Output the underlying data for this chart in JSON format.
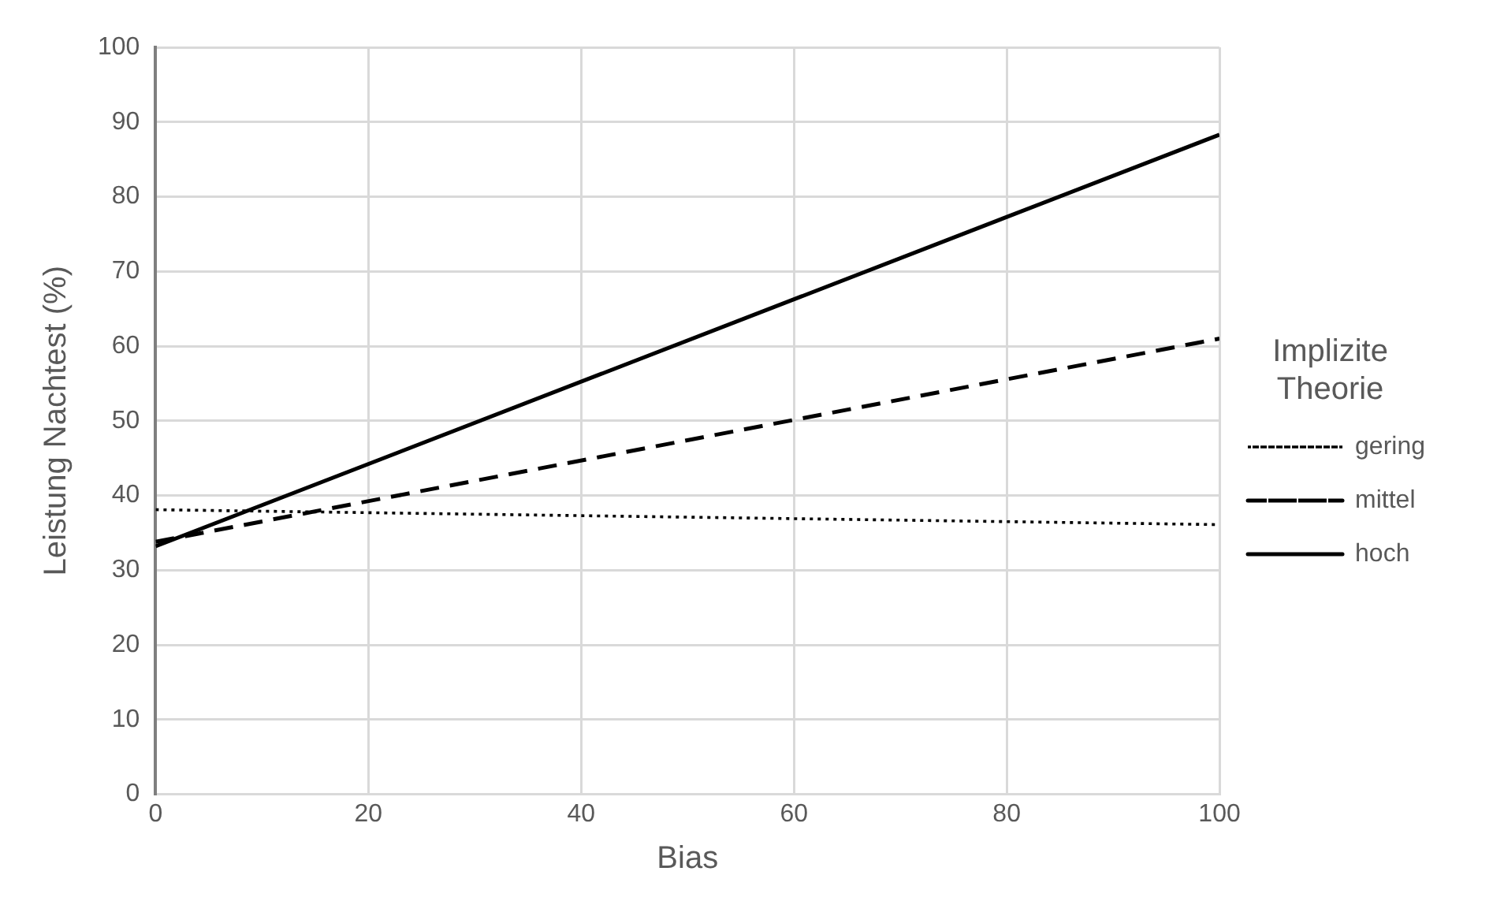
{
  "chart_data": {
    "type": "line",
    "xlabel": "Bias",
    "ylabel": "Leistung Nachtest (%)",
    "legend_title": "Implizite Theorie",
    "x": [
      0,
      100
    ],
    "series": [
      {
        "name": "gering",
        "color": "#000000",
        "values": [
          38.1,
          36.1
        ],
        "line_style": "dotted"
      },
      {
        "name": "mittel",
        "color": "#000000",
        "values": [
          33.8,
          61.0
        ],
        "line_style": "dashed"
      },
      {
        "name": "hoch",
        "color": "#000000",
        "values": [
          33.2,
          88.3
        ],
        "line_style": "solid"
      }
    ],
    "xlim": [
      0,
      100
    ],
    "xticks": [
      0,
      20,
      40,
      60,
      80,
      100
    ],
    "ylim": [
      0,
      100
    ],
    "yticks": [
      0,
      10,
      20,
      30,
      40,
      50,
      60,
      70,
      80,
      90,
      100
    ],
    "grid": true,
    "legend": "right",
    "marker": "none"
  }
}
